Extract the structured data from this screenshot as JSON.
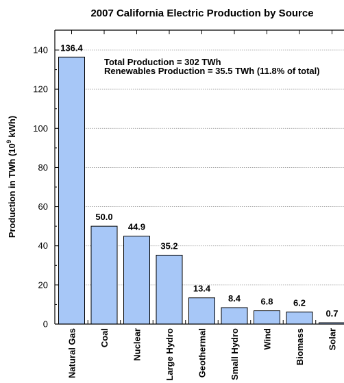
{
  "chart_data": {
    "type": "bar",
    "title": "2007 California Electric Production by Source",
    "ylabel": "Production in TWh (10",
    "ylabel_sup": "9",
    "ylabel_tail": " kWh)",
    "xlabel": "",
    "ylim": [
      0,
      146
    ],
    "yticks": [
      0,
      20,
      40,
      60,
      80,
      100,
      120,
      140
    ],
    "grid": true,
    "categories": [
      "Natural Gas",
      "Coal",
      "Nuclear",
      "Large Hydro",
      "Geothermal",
      "Small Hydro",
      "Wind",
      "Biomass",
      "Solar"
    ],
    "values": [
      136.4,
      50.0,
      44.9,
      35.2,
      13.4,
      8.4,
      6.8,
      6.2,
      0.7
    ],
    "value_labels": [
      "136.4",
      "50.0",
      "44.9",
      "35.2",
      "13.4",
      "8.4",
      "6.8",
      "6.2",
      "0.7"
    ],
    "bar_color": "#a7c7f7",
    "annotations": [
      "Total Production = 302 TWh",
      "Renewables Production = 35.5 TWh (11.8% of total)"
    ]
  }
}
